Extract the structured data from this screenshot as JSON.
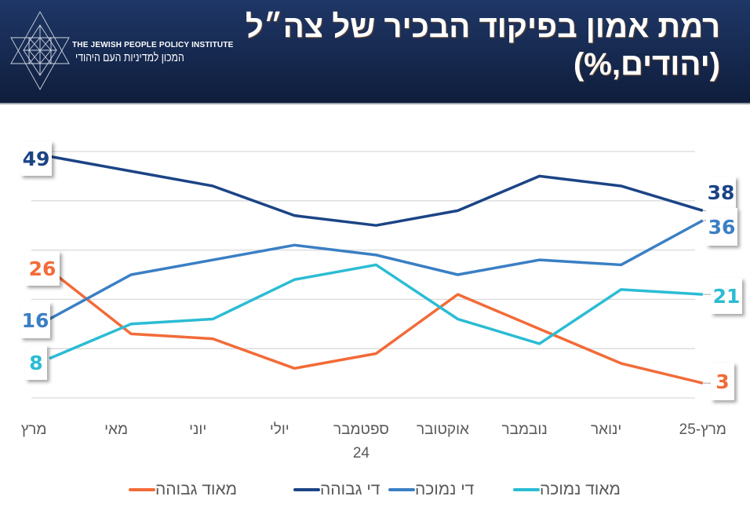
{
  "header": {
    "title_line1": "רמת אמון בפיקוד הבכיר של צה״ל",
    "title_line2": "(יהודים,%)",
    "logo": {
      "icon": "star-of-david-geometric-icon",
      "name_en": "THE JEWISH PEOPLE POLICY INSTITUTE",
      "name_he": "המכון למדיניות העם היהודי"
    }
  },
  "chart_data": {
    "type": "line",
    "title": "רמת אמון בפיקוד הבכיר של צה״ל (יהודים,%)",
    "xlabel": "",
    "ylabel": "",
    "ylim": [
      0,
      50
    ],
    "yticks": [
      0,
      10,
      20,
      30,
      40,
      50
    ],
    "grid": true,
    "y_tick_labels_visible": false,
    "legend_position": "bottom",
    "categories": [
      "מרץ",
      "מאי",
      "יוני",
      "יולי",
      "ספטמבר 24",
      "אוקטובר",
      "נובמבר",
      "ינואר",
      "מרץ-25"
    ],
    "series": [
      {
        "name": "מאוד גבוהה",
        "color": "#f26b38",
        "values": [
          26,
          13,
          12,
          6,
          9,
          21,
          14,
          7,
          3
        ],
        "end_labels": {
          "start": "26",
          "end": "3"
        }
      },
      {
        "name": "די גבוהה",
        "color": "#1b4486",
        "values": [
          49,
          46,
          43,
          37,
          35,
          38,
          45,
          43,
          38
        ],
        "end_labels": {
          "start": "49",
          "end": "38"
        }
      },
      {
        "name": "די נמוכה",
        "color": "#3a7fc4",
        "values": [
          16,
          25,
          28,
          31,
          29,
          25,
          28,
          27,
          36
        ],
        "end_labels": {
          "start": "16",
          "end": "36"
        }
      },
      {
        "name": "מאוד נמוכה",
        "color": "#2bbcd4",
        "values": [
          8,
          15,
          16,
          24,
          27,
          16,
          11,
          22,
          21
        ],
        "end_labels": {
          "start": "8",
          "end": "21"
        }
      }
    ]
  },
  "legend": [
    {
      "label": "מאוד גבוהה",
      "color": "#f26b38"
    },
    {
      "label": "די גבוהה",
      "color": "#1b4486"
    },
    {
      "label": "די נמוכה",
      "color": "#3a7fc4"
    },
    {
      "label": "מאוד נמוכה",
      "color": "#2bbcd4"
    }
  ]
}
